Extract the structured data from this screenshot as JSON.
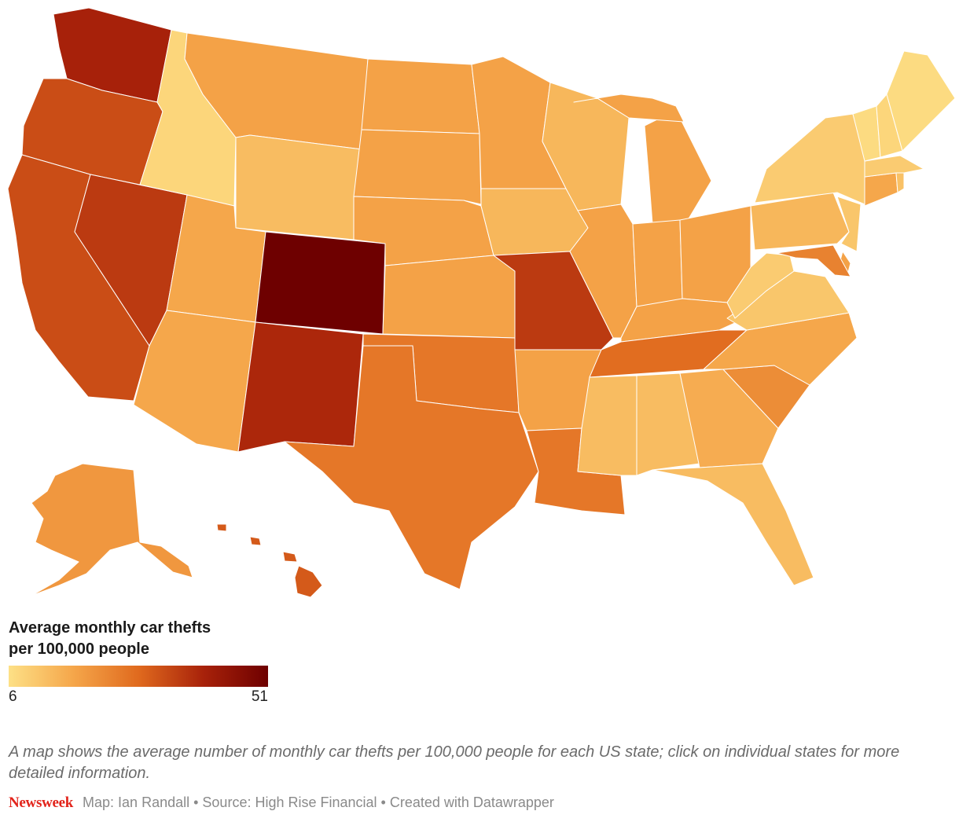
{
  "legend": {
    "title_line1": "Average monthly car thefts",
    "title_line2": "per 100,000 people",
    "min_label": "6",
    "max_label": "51",
    "min_value": 6,
    "max_value": 51,
    "color_stops": [
      "#fde086",
      "#f5a64a",
      "#e06a1e",
      "#a8220a",
      "#6e0000"
    ]
  },
  "description": "A map shows the average number of monthly car thefts per 100,000 people for each US state; click on individual states for more detailed information.",
  "footer": {
    "brand": "Newsweek",
    "credits": "Map: Ian Randall • Source: High Rise Financial • Created with Datawrapper"
  },
  "states": [
    {
      "id": "WA",
      "value": 40
    },
    {
      "id": "OR",
      "value": 33
    },
    {
      "id": "CA",
      "value": 33
    },
    {
      "id": "NV",
      "value": 36
    },
    {
      "id": "ID",
      "value": 8
    },
    {
      "id": "MT",
      "value": 18
    },
    {
      "id": "WY",
      "value": 13
    },
    {
      "id": "UT",
      "value": 17
    },
    {
      "id": "AZ",
      "value": 17
    },
    {
      "id": "CO",
      "value": 51
    },
    {
      "id": "NM",
      "value": 39
    },
    {
      "id": "ND",
      "value": 18
    },
    {
      "id": "SD",
      "value": 18
    },
    {
      "id": "NE",
      "value": 18
    },
    {
      "id": "KS",
      "value": 18
    },
    {
      "id": "OK",
      "value": 26
    },
    {
      "id": "TX",
      "value": 26
    },
    {
      "id": "MN",
      "value": 18
    },
    {
      "id": "IA",
      "value": 14
    },
    {
      "id": "MO",
      "value": 36
    },
    {
      "id": "AR",
      "value": 18
    },
    {
      "id": "LA",
      "value": 26
    },
    {
      "id": "WI",
      "value": 14
    },
    {
      "id": "IL",
      "value": 18
    },
    {
      "id": "MI",
      "value": 18
    },
    {
      "id": "IN",
      "value": 18
    },
    {
      "id": "OH",
      "value": 18
    },
    {
      "id": "KY",
      "value": 18
    },
    {
      "id": "TN",
      "value": 28
    },
    {
      "id": "MS",
      "value": 13
    },
    {
      "id": "AL",
      "value": 13
    },
    {
      "id": "GA",
      "value": 16
    },
    {
      "id": "FL",
      "value": 13
    },
    {
      "id": "SC",
      "value": 22
    },
    {
      "id": "NC",
      "value": 17
    },
    {
      "id": "VA",
      "value": 11
    },
    {
      "id": "WV",
      "value": 10
    },
    {
      "id": "PA",
      "value": 14
    },
    {
      "id": "NY",
      "value": 10
    },
    {
      "id": "NJ",
      "value": 11
    },
    {
      "id": "DE",
      "value": 18
    },
    {
      "id": "MD",
      "value": 24
    },
    {
      "id": "CT",
      "value": 17
    },
    {
      "id": "RI",
      "value": 12
    },
    {
      "id": "MA",
      "value": 10
    },
    {
      "id": "VT",
      "value": 7
    },
    {
      "id": "NH",
      "value": 8
    },
    {
      "id": "ME",
      "value": 7
    },
    {
      "id": "AK",
      "value": 20
    },
    {
      "id": "HI",
      "value": 31
    }
  ]
}
